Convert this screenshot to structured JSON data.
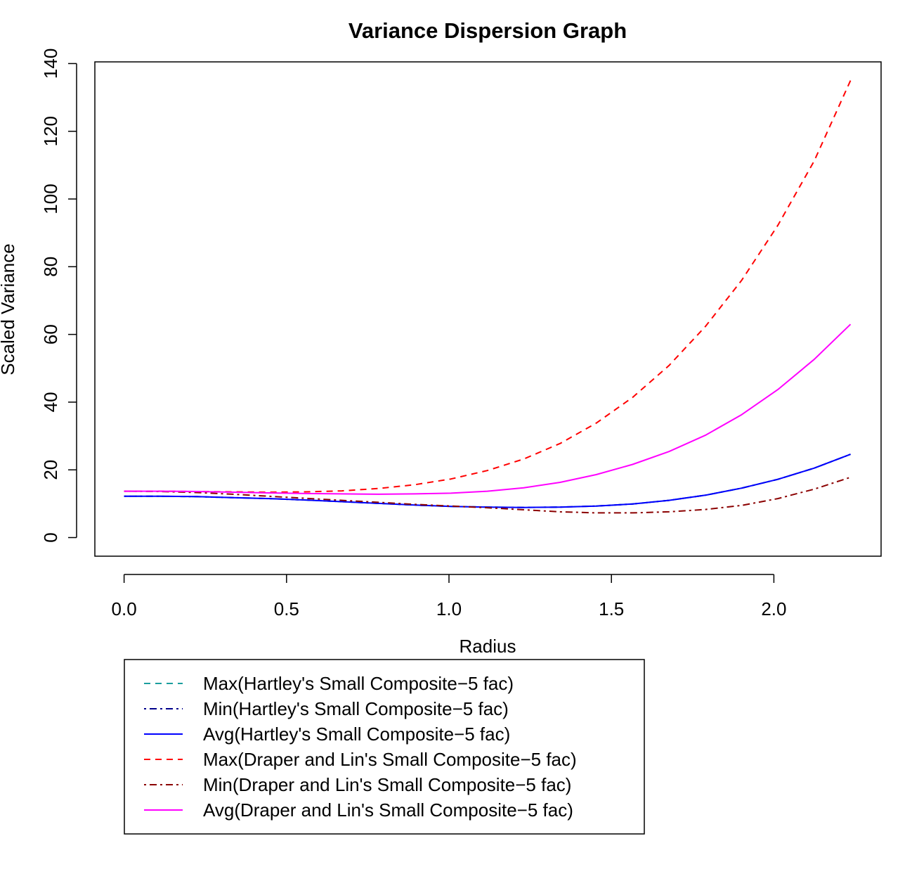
{
  "chart_data": {
    "type": "line",
    "title": "Variance Dispersion Graph",
    "xlabel": "Radius",
    "ylabel": "Scaled Variance",
    "xlim": [
      -0.09,
      2.33
    ],
    "ylim": [
      -5.5,
      140.5
    ],
    "x_ticks": [
      0.0,
      0.5,
      1.0,
      1.5,
      2.0
    ],
    "x_tick_labels": [
      "0.0",
      "0.5",
      "1.0",
      "1.5",
      "2.0"
    ],
    "y_ticks": [
      0,
      20,
      40,
      60,
      80,
      100,
      120,
      140
    ],
    "y_tick_labels": [
      "0",
      "20",
      "40",
      "60",
      "80",
      "100",
      "120",
      "140"
    ],
    "grid": false,
    "legend_position": "bottom-left",
    "x": [
      0.0,
      0.112,
      0.224,
      0.335,
      0.447,
      0.559,
      0.671,
      0.783,
      0.894,
      1.006,
      1.118,
      1.23,
      1.342,
      1.453,
      1.565,
      1.677,
      1.789,
      1.901,
      2.012,
      2.124,
      2.236
    ],
    "series": [
      {
        "name": "Max(Hartley's Small Composite−5 fac)",
        "color": "#1b9e9e",
        "dash": "dashed",
        "values": [
          12.2,
          12.2,
          12.1,
          11.8,
          11.5,
          11.1,
          10.6,
          10.1,
          9.6,
          9.2,
          9.0,
          8.9,
          9.0,
          9.3,
          9.9,
          11.0,
          12.5,
          14.6,
          17.2,
          20.5,
          24.6
        ]
      },
      {
        "name": "Min(Hartley's Small Composite−5 fac)",
        "color": "#00008b",
        "dash": "dotdash",
        "values": [
          12.2,
          12.2,
          12.1,
          11.8,
          11.5,
          11.1,
          10.6,
          10.1,
          9.6,
          9.2,
          9.0,
          8.9,
          9.0,
          9.3,
          9.9,
          11.0,
          12.5,
          14.6,
          17.2,
          20.5,
          24.6
        ]
      },
      {
        "name": "Avg(Hartley's Small Composite−5 fac)",
        "color": "#0000ff",
        "dash": "solid",
        "values": [
          12.2,
          12.2,
          12.1,
          11.8,
          11.5,
          11.1,
          10.6,
          10.1,
          9.6,
          9.2,
          9.0,
          8.9,
          9.0,
          9.3,
          9.9,
          11.0,
          12.5,
          14.6,
          17.2,
          20.5,
          24.6
        ]
      },
      {
        "name": "Max(Draper and Lin's Small Composite−5 fac)",
        "color": "#ff0000",
        "dash": "dashed",
        "values": [
          13.7,
          13.7,
          13.6,
          13.5,
          13.4,
          13.5,
          13.8,
          14.5,
          15.6,
          17.3,
          19.8,
          23.2,
          27.8,
          33.8,
          41.4,
          50.8,
          62.3,
          76.0,
          92.2,
          111.2,
          135.0
        ]
      },
      {
        "name": "Min(Draper and Lin's Small Composite−5 fac)",
        "color": "#8b0000",
        "dash": "dotdash",
        "values": [
          13.7,
          13.6,
          13.3,
          12.8,
          12.2,
          11.6,
          11.0,
          10.4,
          9.8,
          9.3,
          8.8,
          8.2,
          7.6,
          7.3,
          7.3,
          7.6,
          8.3,
          9.5,
          11.5,
          14.3,
          17.8
        ]
      },
      {
        "name": "Avg(Draper and Lin's Small Composite−5 fac)",
        "color": "#ff00ff",
        "dash": "solid",
        "values": [
          13.7,
          13.7,
          13.6,
          13.4,
          13.2,
          13.0,
          12.9,
          12.8,
          12.9,
          13.1,
          13.7,
          14.7,
          16.3,
          18.6,
          21.6,
          25.4,
          30.2,
          36.3,
          43.7,
          52.6,
          63.0
        ]
      }
    ]
  }
}
